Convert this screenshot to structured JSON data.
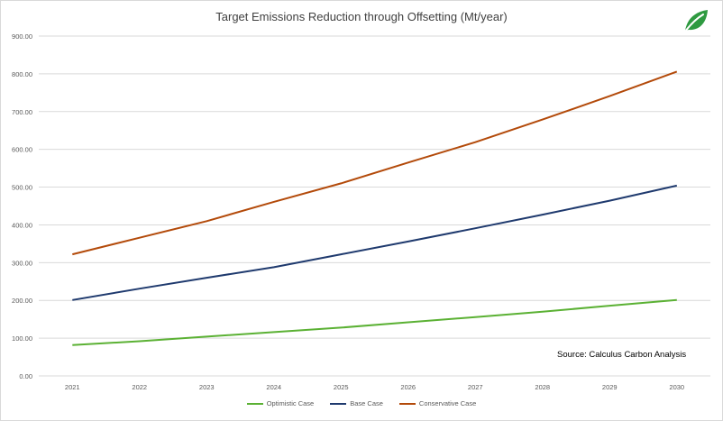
{
  "chart_data": {
    "type": "line",
    "title": "Target Emissions Reduction through Offsetting (Mt/year)",
    "x": [
      "2021",
      "2022",
      "2023",
      "2024",
      "2025",
      "2026",
      "2027",
      "2028",
      "2029",
      "2030"
    ],
    "ylim": [
      0,
      900
    ],
    "yticks": [
      "0.00",
      "100.00",
      "200.00",
      "300.00",
      "400.00",
      "500.00",
      "600.00",
      "700.00",
      "800.00",
      "900.00"
    ],
    "grid": true,
    "legend_position": "bottom",
    "series": [
      {
        "name": "Optimistic Case",
        "color": "#5bb134",
        "values": [
          82,
          92,
          104,
          116,
          128,
          142,
          156,
          170,
          186,
          201
        ]
      },
      {
        "name": "Base Case",
        "color": "#1f3a6e",
        "values": [
          201,
          231,
          260,
          288,
          322,
          356,
          391,
          427,
          464,
          504
        ]
      },
      {
        "name": "Conservative Case",
        "color": "#b34a0a",
        "values": [
          322,
          366,
          410,
          461,
          510,
          565,
          619,
          679,
          741,
          806
        ]
      }
    ],
    "annotation": "Source: Calculus Carbon Analysis"
  },
  "logo": {
    "icon": "leaf-icon",
    "color": "#2e9a40"
  }
}
